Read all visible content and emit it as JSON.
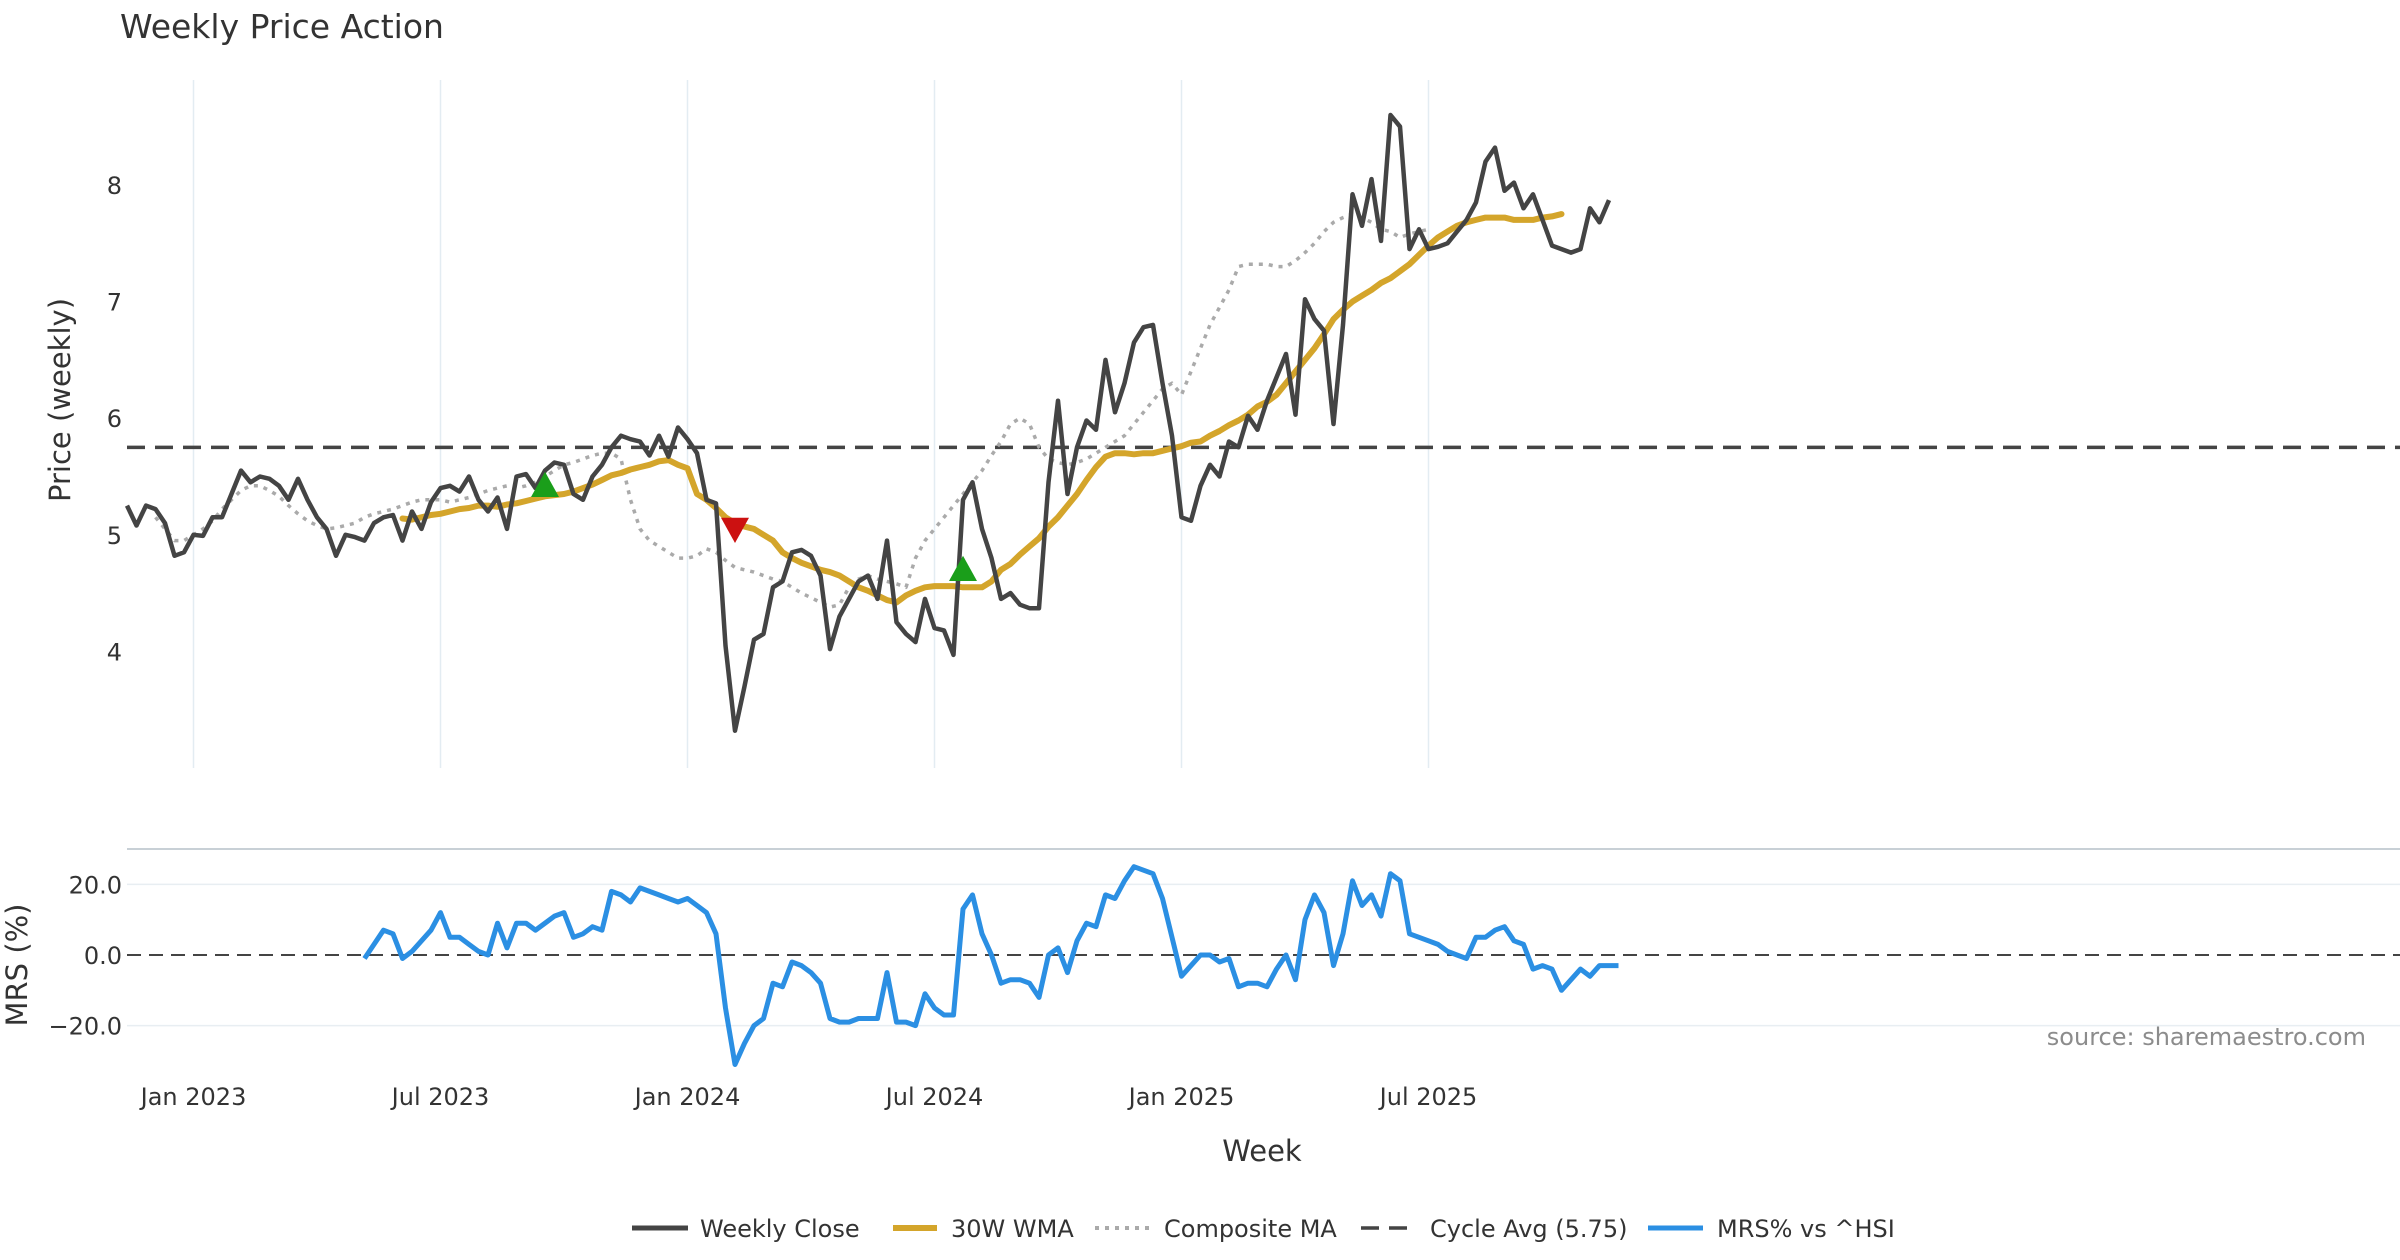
{
  "chart_data": {
    "type": "line",
    "title": "Weekly Price Action",
    "source": "source: sharemaestro.com",
    "xlabel": "Week",
    "x_tick_labels": [
      "Jan 2023",
      "Jul 2023",
      "Jan 2024",
      "Jul 2024",
      "Jan 2025",
      "Jul 2025"
    ],
    "x_tick_weeks": [
      4,
      30,
      56,
      82,
      108,
      134
    ],
    "price_panel": {
      "ylabel": "Price (weekly)",
      "ylim": [
        3.0,
        8.9
      ],
      "yticks": [
        4,
        5,
        6,
        7,
        8
      ],
      "cycle_avg": 5.75,
      "series": [
        {
          "name": "Weekly Close",
          "color": "#444444",
          "start_week": -3,
          "values": [
            5.25,
            5.08,
            5.25,
            5.22,
            5.1,
            4.82,
            4.85,
            5.0,
            4.99,
            5.15,
            5.15,
            5.35,
            5.55,
            5.45,
            5.5,
            5.48,
            5.42,
            5.3,
            5.48,
            5.3,
            5.15,
            5.05,
            4.82,
            5.0,
            4.98,
            4.95,
            5.1,
            5.15,
            5.17,
            4.95,
            5.2,
            5.05,
            5.28,
            5.4,
            5.42,
            5.37,
            5.5,
            5.3,
            5.2,
            5.32,
            5.05,
            5.5,
            5.52,
            5.4,
            5.55,
            5.62,
            5.6,
            5.35,
            5.3,
            5.5,
            5.6,
            5.75,
            5.85,
            5.82,
            5.8,
            5.68,
            5.85,
            5.67,
            5.92,
            5.82,
            5.7,
            5.3,
            5.27,
            4.05,
            3.32,
            3.7,
            4.1,
            4.15,
            4.55,
            4.6,
            4.85,
            4.87,
            4.82,
            4.65,
            4.02,
            4.3,
            4.45,
            4.6,
            4.65,
            4.45,
            4.95,
            4.25,
            4.15,
            4.08,
            4.45,
            4.2,
            4.18,
            3.97,
            5.3,
            5.45,
            5.05,
            4.8,
            4.45,
            4.5,
            4.4,
            4.37,
            4.37,
            5.45,
            6.15,
            5.35,
            5.75,
            5.98,
            5.9,
            6.5,
            6.05,
            6.3,
            6.65,
            6.78,
            6.8,
            6.3,
            5.85,
            5.15,
            5.12,
            5.42,
            5.6,
            5.5,
            5.8,
            5.75,
            6.02,
            5.9,
            6.15,
            6.35,
            6.55,
            6.03,
            7.02,
            6.85,
            6.75,
            5.95,
            6.8,
            7.92,
            7.65,
            8.05,
            7.52,
            8.6,
            8.5,
            7.45,
            7.62,
            7.45,
            7.47,
            7.5,
            7.6,
            7.7,
            7.85,
            8.2,
            8.32,
            7.95,
            8.02,
            7.8,
            7.92,
            7.7,
            7.48,
            7.45,
            7.42,
            7.45,
            7.8,
            7.68,
            7.87
          ]
        },
        {
          "name": "30W WMA",
          "color": "#D4A52B",
          "start_week": 26,
          "values": [
            5.14,
            5.13,
            5.15,
            5.17,
            5.18,
            5.2,
            5.22,
            5.23,
            5.25,
            5.25,
            5.24,
            5.26,
            5.27,
            5.29,
            5.31,
            5.33,
            5.34,
            5.35,
            5.37,
            5.4,
            5.43,
            5.47,
            5.51,
            5.53,
            5.56,
            5.58,
            5.6,
            5.63,
            5.64,
            5.6,
            5.57,
            5.35,
            5.3,
            5.23,
            5.15,
            5.1,
            5.07,
            5.05,
            5.0,
            4.95,
            4.85,
            4.8,
            4.76,
            4.73,
            4.7,
            4.68,
            4.65,
            4.6,
            4.55,
            4.52,
            4.48,
            4.44,
            4.42,
            4.48,
            4.52,
            4.55,
            4.56,
            4.56,
            4.56,
            4.55,
            4.55,
            4.55,
            4.6,
            4.7,
            4.75,
            4.83,
            4.9,
            4.97,
            5.07,
            5.15,
            5.25,
            5.35,
            5.47,
            5.58,
            5.67,
            5.7,
            5.7,
            5.69,
            5.7,
            5.7,
            5.72,
            5.74,
            5.76,
            5.79,
            5.8,
            5.85,
            5.89,
            5.94,
            5.98,
            6.03,
            6.1,
            6.14,
            6.2,
            6.3,
            6.4,
            6.5,
            6.6,
            6.72,
            6.85,
            6.93,
            7.0,
            7.05,
            7.1,
            7.16,
            7.2,
            7.26,
            7.32,
            7.4,
            7.48,
            7.55,
            7.6,
            7.65,
            7.68,
            7.7,
            7.72,
            7.72,
            7.72,
            7.7,
            7.7,
            7.7,
            7.72,
            7.73,
            7.75
          ]
        },
        {
          "name": "Composite MA",
          "color": "#AAAAAA",
          "start_week": 0,
          "values": [
            5.15,
            5.05,
            4.95,
            4.95,
            5.0,
            5.05,
            5.12,
            5.22,
            5.3,
            5.38,
            5.42,
            5.42,
            5.38,
            5.33,
            5.25,
            5.18,
            5.12,
            5.08,
            5.05,
            5.06,
            5.08,
            5.1,
            5.15,
            5.18,
            5.2,
            5.22,
            5.25,
            5.28,
            5.3,
            5.3,
            5.3,
            5.28,
            5.3,
            5.32,
            5.35,
            5.38,
            5.4,
            5.42,
            5.4,
            5.42,
            5.45,
            5.5,
            5.55,
            5.6,
            5.62,
            5.65,
            5.68,
            5.7,
            5.7,
            5.65,
            5.3,
            5.05,
            4.95,
            4.9,
            4.85,
            4.8,
            4.8,
            4.82,
            4.88,
            4.85,
            4.78,
            4.72,
            4.7,
            4.68,
            4.65,
            4.62,
            4.6,
            4.55,
            4.5,
            4.46,
            4.42,
            4.38,
            4.4,
            4.55,
            4.62,
            4.65,
            4.62,
            4.6,
            4.58,
            4.55,
            4.8,
            4.95,
            5.05,
            5.15,
            5.25,
            5.35,
            5.45,
            5.55,
            5.68,
            5.8,
            5.95,
            6.0,
            5.95,
            5.75,
            5.65,
            5.62,
            5.6,
            5.62,
            5.65,
            5.7,
            5.75,
            5.8,
            5.85,
            5.95,
            6.05,
            6.15,
            6.25,
            6.3,
            6.2,
            6.4,
            6.6,
            6.8,
            6.95,
            7.1,
            7.3,
            7.32,
            7.32,
            7.32,
            7.3,
            7.3,
            7.35,
            7.42,
            7.5,
            7.6,
            7.68,
            7.72,
            7.75,
            7.72,
            7.68,
            7.62,
            7.6,
            7.55,
            7.58,
            7.6,
            7.62
          ]
        },
        {
          "name": "Cycle Avg (5.75)",
          "color": "#444444"
        }
      ],
      "markers": [
        {
          "type": "buy",
          "week": 41,
          "value": 5.42,
          "color": "#1a9e1a"
        },
        {
          "type": "sell",
          "week": 61,
          "value": 5.05,
          "color": "#cc1111"
        },
        {
          "type": "buy",
          "week": 85,
          "value": 4.7,
          "color": "#1a9e1a"
        }
      ]
    },
    "mrs_panel": {
      "ylabel": "MRS (%)",
      "ylim": [
        -32,
        30
      ],
      "yticks": [
        20.0,
        0.0,
        -20.0
      ],
      "ytick_labels": [
        "20.0",
        "0.0",
        "−20.0"
      ],
      "series": [
        {
          "name": "MRS% vs ^HSI",
          "color": "#2B8FE3",
          "start_week": 22,
          "values": [
            -1,
            3,
            7,
            6,
            -1,
            1,
            4,
            7,
            12,
            5,
            5,
            3,
            1,
            0,
            9,
            2,
            9,
            9,
            7,
            9,
            11,
            12,
            5,
            6,
            8,
            7,
            18,
            17,
            15,
            19,
            18,
            17,
            16,
            15,
            16,
            14,
            12,
            6,
            -15,
            -31,
            -25,
            -20,
            -18,
            -8,
            -9,
            -2,
            -3,
            -5,
            -8,
            -18,
            -19,
            -19,
            -18,
            -18,
            -18,
            -5,
            -19,
            -19,
            -20,
            -11,
            -15,
            -17,
            -17,
            13,
            17,
            6,
            0,
            -8,
            -7,
            -7,
            -8,
            -12,
            0,
            2,
            -5,
            4,
            9,
            8,
            17,
            16,
            21,
            25,
            24,
            23,
            16,
            5,
            -6,
            -3,
            0,
            0,
            -2,
            -1,
            -9,
            -8,
            -8,
            -9,
            -4,
            0,
            -7,
            10,
            17,
            12,
            -3,
            6,
            21,
            14,
            17,
            11,
            23,
            21,
            6,
            5,
            4,
            3,
            1,
            0,
            -1,
            5,
            5,
            7,
            8,
            4,
            3,
            -4,
            -3,
            -4,
            -10,
            -7,
            -4,
            -6,
            -3,
            -3,
            -3
          ]
        }
      ]
    },
    "legend": {
      "placement": "bottom-center",
      "entries": [
        "Weekly Close",
        "30W WMA",
        "Composite MA",
        "Cycle Avg (5.75)",
        "MRS% vs ^HSI"
      ]
    }
  }
}
